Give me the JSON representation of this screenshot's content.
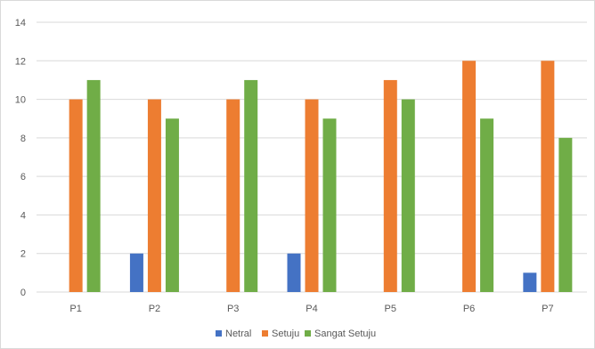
{
  "chart_data": {
    "type": "bar",
    "title": "",
    "xlabel": "",
    "ylabel": "",
    "categories": [
      "P1",
      "P2",
      "P3",
      "P4",
      "P5",
      "P6",
      "P7"
    ],
    "ylim": [
      0,
      14
    ],
    "yticks": [
      0,
      2,
      4,
      6,
      8,
      10,
      12,
      14
    ],
    "grid": true,
    "legend_position": "bottom",
    "series": [
      {
        "name": "Netral",
        "color": "#4472c4",
        "values": [
          0,
          2,
          0,
          2,
          0,
          0,
          1
        ]
      },
      {
        "name": "Setuju",
        "color": "#ed7d31",
        "values": [
          10,
          10,
          10,
          10,
          11,
          12,
          12
        ]
      },
      {
        "name": "Sangat Setuju",
        "color": "#70ad47",
        "values": [
          11,
          9,
          11,
          9,
          10,
          9,
          8
        ]
      }
    ]
  }
}
